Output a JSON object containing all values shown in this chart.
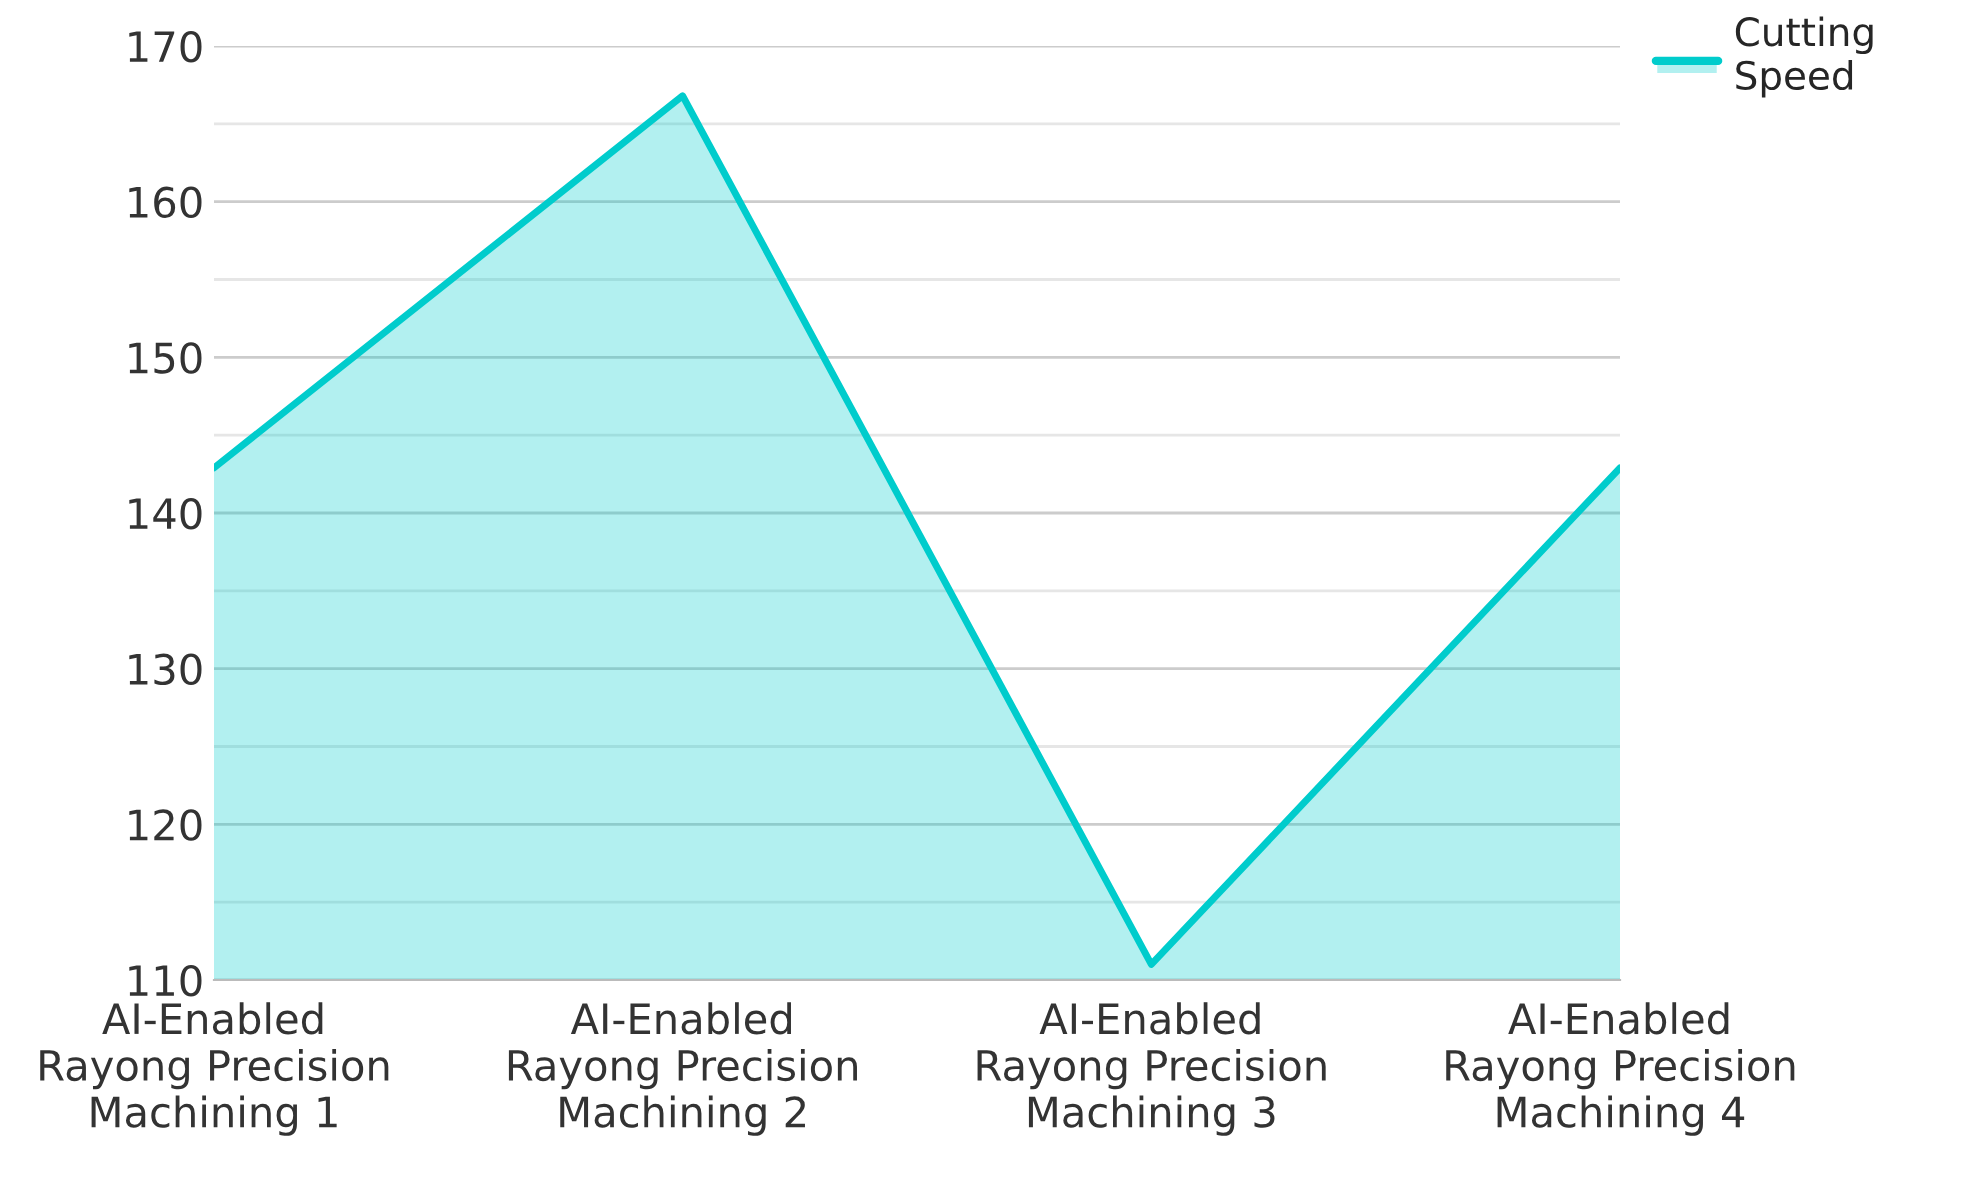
{
  "chart_data": {
    "type": "area",
    "categories": [
      "AI-Enabled\nRayong Precision\nMachining 1",
      "AI-Enabled\nRayong Precision\nMachining 2",
      "AI-Enabled\nRayong Precision\nMachining 3",
      "AI-Enabled\nRayong Precision\nMachining 4"
    ],
    "series": [
      {
        "name": "Cutting\nSpeed",
        "color": "#00cccc",
        "values": [
          142.9,
          166.8,
          111.0,
          142.9
        ]
      }
    ],
    "ylim": [
      110,
      170
    ],
    "yticks": [
      110,
      {
        "value": 115,
        "label": null
      },
      120,
      {
        "value": 125,
        "label": null
      },
      130,
      {
        "value": 135,
        "label": null
      },
      140,
      {
        "value": 145,
        "label": null
      },
      150,
      {
        "value": 155,
        "label": null
      },
      160,
      {
        "value": 165,
        "label": null
      },
      170
    ],
    "grid": "y",
    "legend": "top right",
    "marker": "none",
    "line_style": "solid"
  }
}
